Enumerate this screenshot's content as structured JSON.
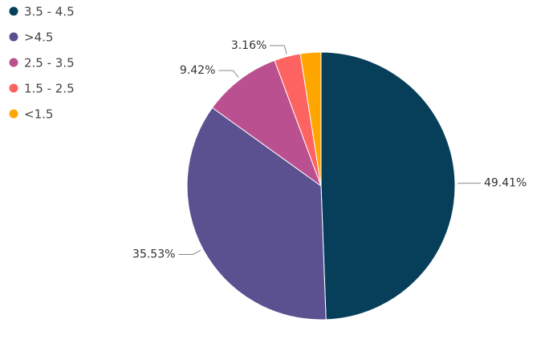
{
  "chart_data": {
    "type": "pie",
    "categories": [
      "3.5 - 4.5",
      ">4.5",
      "2.5 - 3.5",
      "1.5 - 2.5",
      "<1.5"
    ],
    "values": [
      49.41,
      35.53,
      9.42,
      3.16,
      2.48
    ],
    "value_labels": [
      "49.41%",
      "35.53%",
      "9.42%",
      "3.16%",
      null
    ],
    "colors": [
      "#073f5b",
      "#5b5190",
      "#bb5090",
      "#fd6361",
      "#ffa600"
    ],
    "legend": "top-left"
  }
}
